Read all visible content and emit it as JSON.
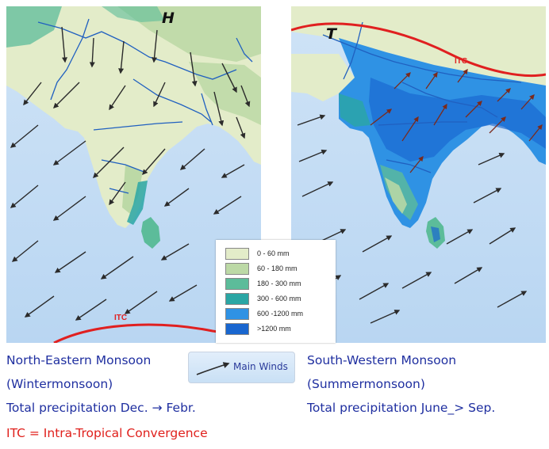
{
  "left_map": {
    "pressure_label": "H",
    "itc_label": "ITC",
    "caption_title": "North-Eastern Monsoon",
    "caption_subtitle": "(Wintermonsoon)",
    "caption_precip": "Total precipitation Dec. → Febr."
  },
  "right_map": {
    "pressure_label": "T",
    "itc_label": "ITC",
    "caption_title": "South-Western Monsoon",
    "caption_subtitle": "(Summermonsoon)",
    "caption_precip": "Total precipitation June_> Sep."
  },
  "legend": {
    "items": [
      {
        "label": "0 -  60 mm",
        "color": "#e3ecc9"
      },
      {
        "label": "60 - 180 mm",
        "color": "#bcd9a6"
      },
      {
        "label": "180 - 300 mm",
        "color": "#5cbc9a"
      },
      {
        "label": "300 - 600 mm",
        "color": "#2aa6a4"
      },
      {
        "label": "600 -1200 mm",
        "color": "#2f92e4"
      },
      {
        "label": ">1200 mm",
        "color": "#1966cf"
      }
    ]
  },
  "key": {
    "label": "Main Winds",
    "icon": "wind-arrow-icon"
  },
  "itc_note": "ITC = Intra-Tropical Convergence",
  "colors": {
    "sea": "#c3dcf4",
    "land_dry": "#e3ecc9",
    "land_moderate": "#bcd9a6",
    "humid": "#5cbc9a",
    "very_humid": "#2f92e4",
    "itc_line": "#e02020",
    "rivers": "#2060c0",
    "caption_text": "#1f2fa0",
    "note_text": "#e0201c"
  }
}
